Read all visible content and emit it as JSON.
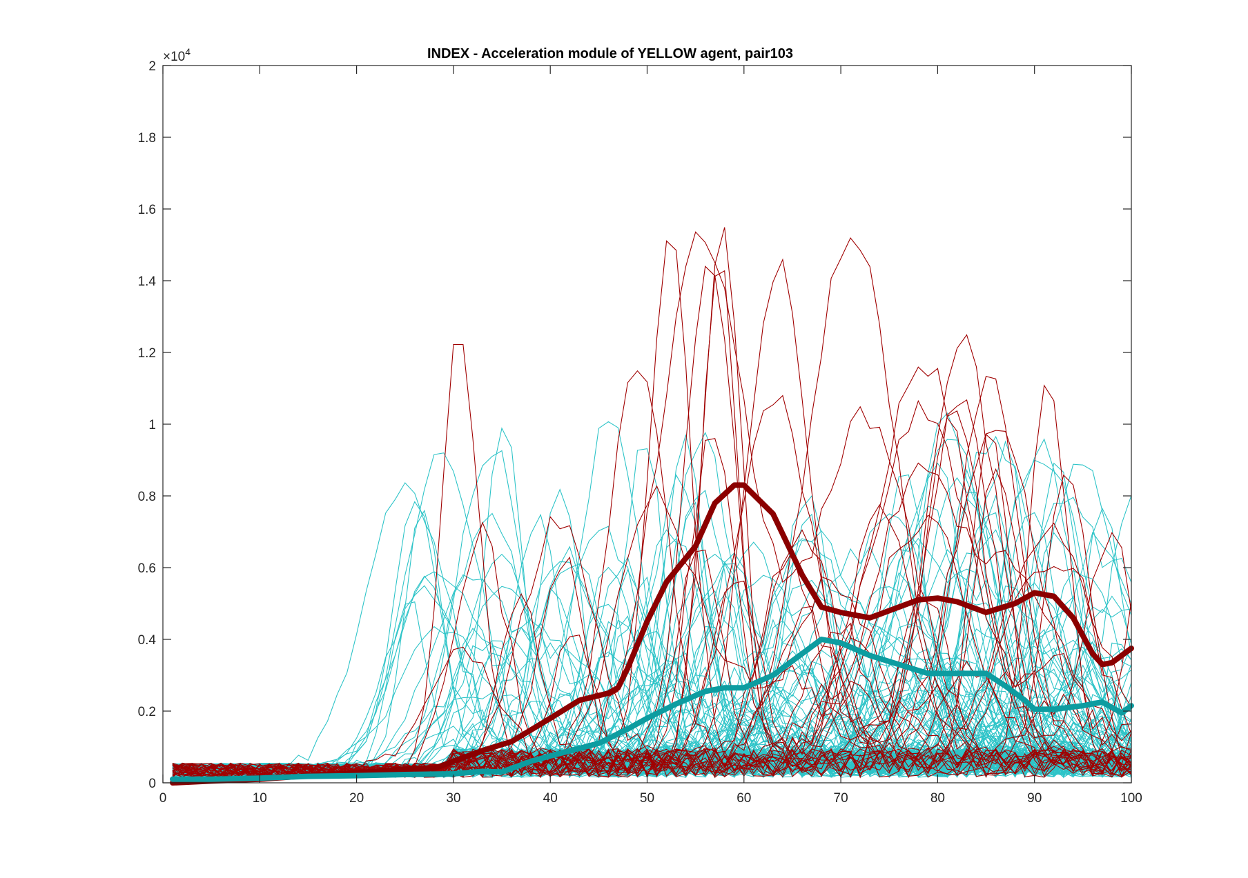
{
  "chart_data": {
    "type": "line",
    "title": "INDEX - Acceleration module of YELLOW agent, pair103",
    "xlabel": "",
    "ylabel": "",
    "xlim": [
      0,
      100
    ],
    "ylim": [
      0,
      20000
    ],
    "y_exponent_label": "×10",
    "y_exponent_power": "4",
    "x_ticks": [
      0,
      10,
      20,
      30,
      40,
      50,
      60,
      70,
      80,
      90,
      100
    ],
    "x_tick_labels": [
      "0",
      "10",
      "20",
      "30",
      "40",
      "50",
      "60",
      "70",
      "80",
      "90",
      "100"
    ],
    "y_ticks": [
      0,
      2000,
      4000,
      6000,
      8000,
      10000,
      12000,
      14000,
      16000,
      18000,
      20000
    ],
    "y_tick_labels": [
      "0",
      "0.2",
      "0.4",
      "0.6",
      "0.8",
      "1",
      "1.2",
      "1.4",
      "1.6",
      "1.8",
      "2"
    ],
    "grid": false,
    "legend": "none",
    "colors": {
      "cyan_trials": "#2ec4c8",
      "red_trials": "#a00000",
      "cyan_mean": "#0d9ca0",
      "red_mean": "#8b0000"
    },
    "series": [
      {
        "role": "mean",
        "color": "#8b0000",
        "x": [
          1,
          5,
          10,
          15,
          20,
          25,
          28,
          30,
          33,
          36,
          40,
          43,
          46,
          47,
          48,
          50,
          52,
          55,
          57,
          59,
          60,
          63,
          66,
          68,
          70,
          73,
          75,
          78,
          80,
          82,
          85,
          88,
          90,
          92,
          94,
          96,
          97,
          98,
          100
        ],
        "y": [
          0,
          50,
          100,
          200,
          280,
          380,
          400,
          600,
          900,
          1150,
          1800,
          2300,
          2500,
          2650,
          3200,
          4500,
          5600,
          6600,
          7800,
          8300,
          8300,
          7500,
          5800,
          4900,
          4750,
          4600,
          4800,
          5100,
          5150,
          5050,
          4750,
          5000,
          5300,
          5200,
          4600,
          3600,
          3300,
          3350,
          3750
        ]
      },
      {
        "role": "mean",
        "color": "#0d9ca0",
        "x": [
          1,
          5,
          10,
          15,
          20,
          25,
          30,
          33,
          35,
          38,
          40,
          45,
          48,
          50,
          53,
          56,
          58,
          60,
          63,
          66,
          68,
          70,
          73,
          76,
          79,
          82,
          85,
          87,
          89,
          90,
          92,
          95,
          97,
          99,
          100
        ],
        "y": [
          100,
          100,
          130,
          180,
          200,
          230,
          250,
          320,
          300,
          600,
          750,
          1100,
          1500,
          1800,
          2200,
          2550,
          2650,
          2650,
          3000,
          3600,
          4000,
          3900,
          3550,
          3300,
          3050,
          3050,
          3050,
          2700,
          2300,
          2050,
          2050,
          2150,
          2250,
          1950,
          2150
        ]
      }
    ]
  }
}
